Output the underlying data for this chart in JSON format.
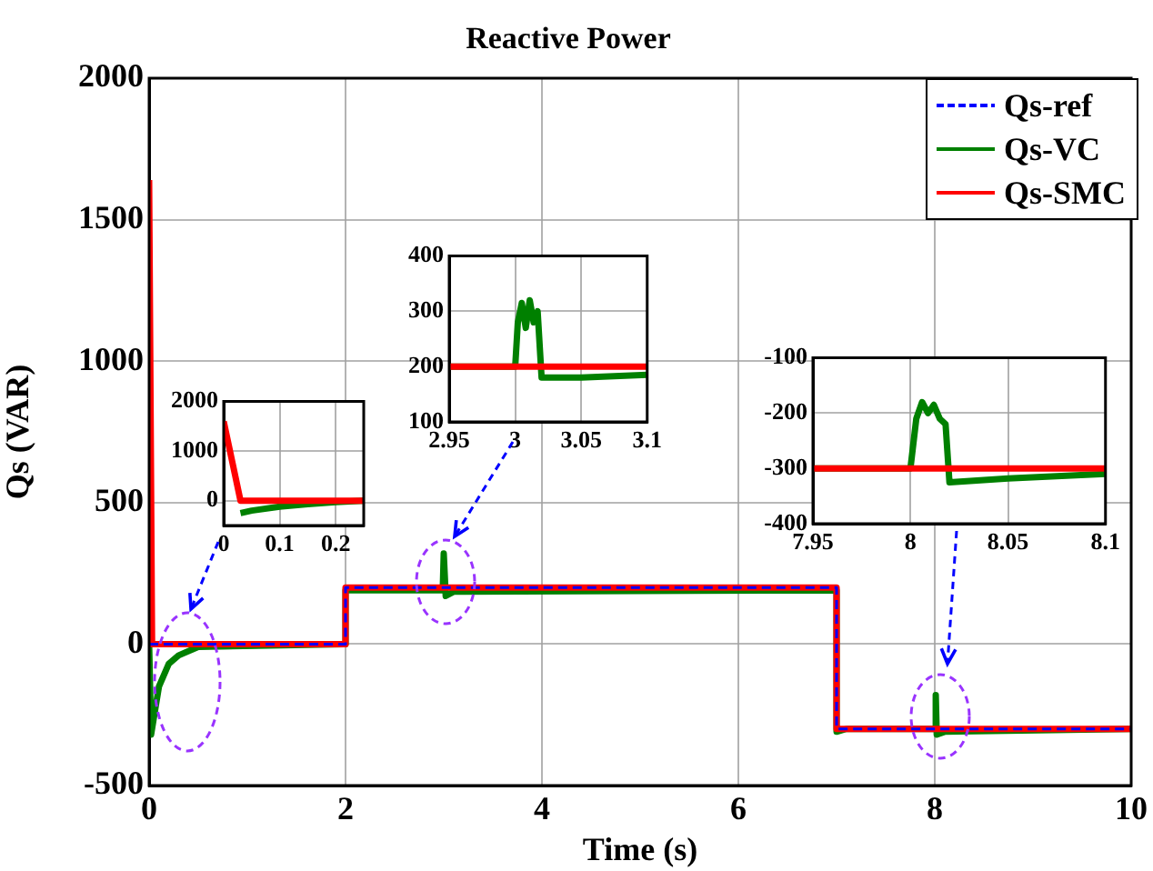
{
  "chart_data": [
    {
      "type": "line",
      "title": "Reactive Power",
      "xlabel": "Time (s)",
      "ylabel": "Qs (VAR)",
      "xlim": [
        0,
        10
      ],
      "ylim": [
        -500,
        2000
      ],
      "xticks": [
        0,
        2,
        4,
        6,
        8,
        10
      ],
      "yticks": [
        -500,
        0,
        500,
        1000,
        1500,
        2000
      ],
      "grid": true,
      "legend": "top right",
      "series": [
        {
          "name": "Qs-ref",
          "color": "#0000ff",
          "line_style": "dashed",
          "x": [
            0,
            2,
            2,
            7,
            7,
            10
          ],
          "values": [
            0,
            0,
            200,
            200,
            -300,
            -300
          ]
        },
        {
          "name": "Qs-VC",
          "color": "#008000",
          "x": [
            0,
            0.02,
            0.1,
            0.2,
            0.3,
            0.5,
            2,
            2,
            2.99,
            3.0,
            3.015,
            3.02,
            3.1,
            7,
            7,
            7.1,
            8,
            8.01,
            8.02,
            8.1,
            10
          ],
          "values": [
            0,
            -320,
            -150,
            -70,
            -40,
            -10,
            0,
            190,
            190,
            320,
            320,
            170,
            185,
            190,
            -310,
            -300,
            -300,
            -180,
            -320,
            -310,
            -300
          ]
        },
        {
          "name": "Qs-SMC",
          "color": "#ff0000",
          "x": [
            0,
            0.03,
            2,
            2,
            7,
            7,
            10
          ],
          "values": [
            1640,
            0,
            0,
            200,
            200,
            -300,
            -300
          ]
        }
      ]
    },
    {
      "type": "line",
      "xlim": [
        0,
        0.25
      ],
      "ylim": [
        -500,
        2000
      ],
      "xticks": [
        0,
        0.1,
        0.2
      ],
      "yticks": [
        0,
        1000,
        2000
      ],
      "grid": true,
      "series": [
        {
          "color": "#008000",
          "x": [
            0.03,
            0.05,
            0.1,
            0.15,
            0.2,
            0.25
          ],
          "values": [
            -250,
            -200,
            -120,
            -70,
            -30,
            0
          ]
        },
        {
          "color": "#ff0000",
          "x": [
            0,
            0.03,
            0.25
          ],
          "values": [
            1600,
            0,
            0
          ]
        }
      ]
    },
    {
      "type": "line",
      "xlim": [
        2.95,
        3.1
      ],
      "ylim": [
        100,
        400
      ],
      "xticks": [
        2.95,
        3,
        3.05,
        3.1
      ],
      "yticks": [
        100,
        200,
        300,
        400
      ],
      "grid": true,
      "series": [
        {
          "color": "#008000",
          "x": [
            2.95,
            3.0,
            3.002,
            3.005,
            3.008,
            3.011,
            3.014,
            3.017,
            3.02,
            3.05,
            3.1
          ],
          "values": [
            200,
            200,
            280,
            315,
            270,
            320,
            280,
            300,
            180,
            180,
            185
          ]
        },
        {
          "color": "#ff0000",
          "x": [
            2.95,
            3.1
          ],
          "values": [
            200,
            200
          ]
        }
      ]
    },
    {
      "type": "line",
      "xlim": [
        7.95,
        8.1
      ],
      "ylim": [
        -400,
        -100
      ],
      "xticks": [
        7.95,
        8,
        8.05,
        8.1
      ],
      "yticks": [
        -400,
        -300,
        -200,
        -100
      ],
      "grid": true,
      "series": [
        {
          "color": "#008000",
          "x": [
            7.95,
            8.0,
            8.003,
            8.006,
            8.009,
            8.012,
            8.015,
            8.018,
            8.02,
            8.05,
            8.1
          ],
          "values": [
            -300,
            -300,
            -210,
            -180,
            -200,
            -185,
            -210,
            -220,
            -325,
            -318,
            -310
          ]
        },
        {
          "color": "#ff0000",
          "x": [
            7.95,
            8.1
          ],
          "values": [
            -300,
            -300
          ]
        }
      ]
    }
  ]
}
